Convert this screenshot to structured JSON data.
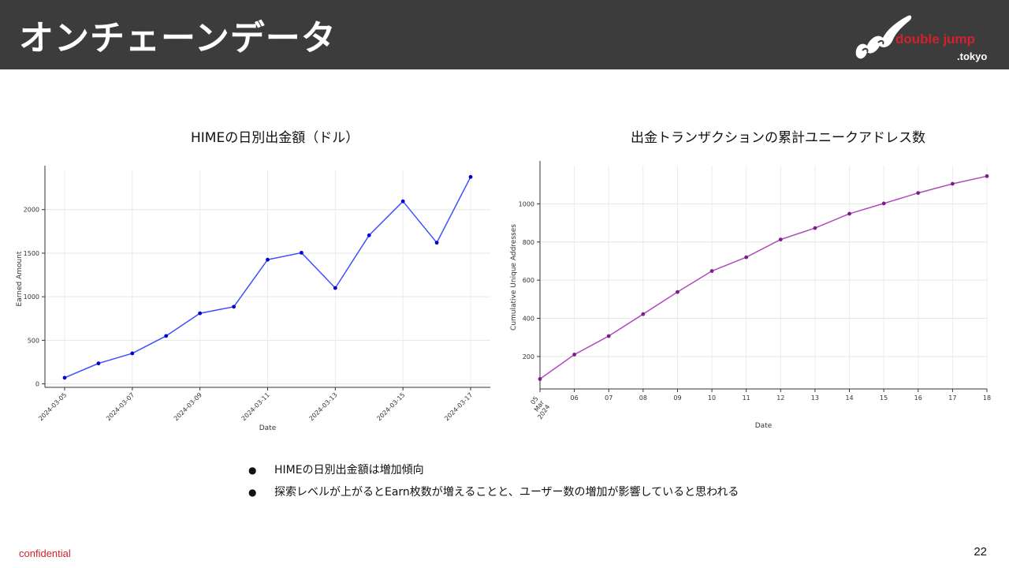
{
  "header": {
    "title": "オンチェーンデータ",
    "logo_text_main": "double jump",
    "logo_text_sub": ".tokyo",
    "logo_color": "#d2202f",
    "background": "#3c3c3c"
  },
  "chart_data": [
    {
      "type": "line",
      "title": "HIMEの日別出金額（ドル）",
      "xlabel": "Date",
      "ylabel": "Earned Amount",
      "x": [
        "2024-03-05",
        "2024-03-06",
        "2024-03-07",
        "2024-03-08",
        "2024-03-09",
        "2024-03-10",
        "2024-03-11",
        "2024-03-12",
        "2024-03-13",
        "2024-03-14",
        "2024-03-15",
        "2024-03-16",
        "2024-03-17"
      ],
      "x_tick_labels": [
        "2024-03-05",
        "2024-03-07",
        "2024-03-09",
        "2024-03-11",
        "2024-03-13",
        "2024-03-15",
        "2024-03-17"
      ],
      "values": [
        70,
        235,
        350,
        550,
        810,
        885,
        1425,
        1505,
        1100,
        1705,
        2095,
        1620,
        2375
      ],
      "y_ticks": [
        0,
        500,
        1000,
        1500,
        2000
      ],
      "ylim": [
        -40,
        2450
      ],
      "grid": true,
      "line_color": "#3d4fff",
      "marker_color": "#0000cc"
    },
    {
      "type": "line",
      "title": "出金トランザクションの累計ユニークアドレス数",
      "xlabel": "Date",
      "ylabel": "Cumulative Unique Addresses",
      "x": [
        "2024-03-05",
        "2024-03-06",
        "2024-03-07",
        "2024-03-08",
        "2024-03-09",
        "2024-03-10",
        "2024-03-11",
        "2024-03-12",
        "2024-03-13",
        "2024-03-14",
        "2024-03-15",
        "2024-03-16",
        "2024-03-17",
        "2024-03-18"
      ],
      "x_tick_labels": [
        "05\nMar\n2024",
        "06",
        "07",
        "08",
        "09",
        "10",
        "11",
        "12",
        "13",
        "14",
        "15",
        "16",
        "17",
        "18"
      ],
      "values": [
        82,
        210,
        307,
        422,
        538,
        648,
        720,
        813,
        873,
        948,
        1002,
        1057,
        1105,
        1145
      ],
      "y_ticks": [
        200,
        400,
        600,
        800,
        1000
      ],
      "ylim": [
        30,
        1200
      ],
      "grid": true,
      "line_color": "#b04bbd",
      "marker_color": "#7a1f86"
    }
  ],
  "bullets": [
    "HIMEの日別出金額は増加傾向",
    "探索レベルが上がるとEarn枚数が増えることと、ユーザー数の増加が影響していると思われる"
  ],
  "footer": {
    "confidential": "confidential",
    "page_number": "22"
  }
}
